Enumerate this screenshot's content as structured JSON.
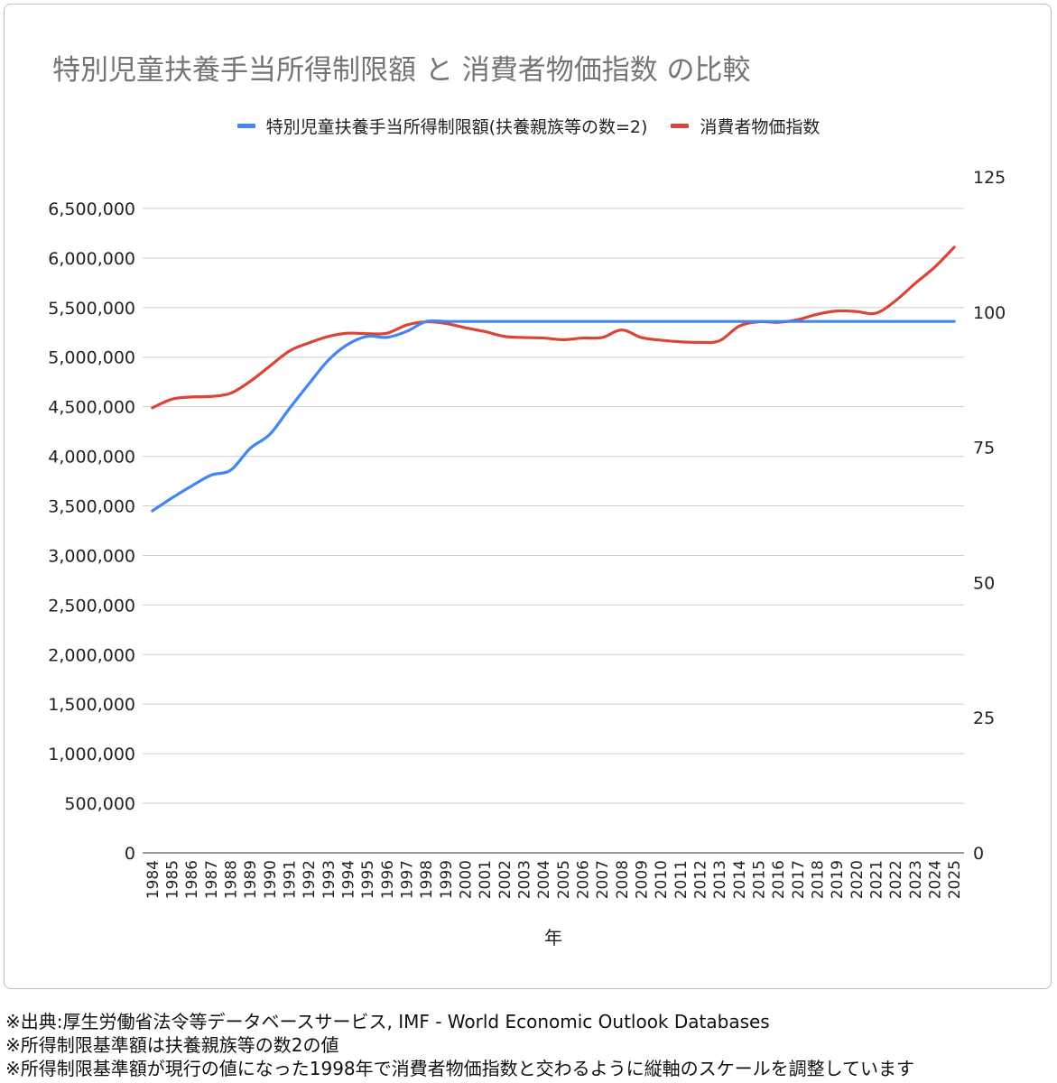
{
  "chart_data": {
    "type": "line",
    "title": "特別児童扶養手当所得制限額 と 消費者物価指数 の比較",
    "xlabel": "年",
    "categories": [
      "1984",
      "1985",
      "1986",
      "1987",
      "1988",
      "1989",
      "1990",
      "1991",
      "1992",
      "1993",
      "1994",
      "1995",
      "1996",
      "1997",
      "1998",
      "1999",
      "2000",
      "2001",
      "2002",
      "2003",
      "2004",
      "2005",
      "2006",
      "2007",
      "2008",
      "2009",
      "2010",
      "2011",
      "2012",
      "2013",
      "2014",
      "2015",
      "2016",
      "2017",
      "2018",
      "2019",
      "2020",
      "2021",
      "2022",
      "2023",
      "2024",
      "2025"
    ],
    "left_axis": {
      "min": 0,
      "max": 6818182,
      "ticks": [
        0,
        500000,
        1000000,
        1500000,
        2000000,
        2500000,
        3000000,
        3500000,
        4000000,
        4500000,
        5000000,
        5500000,
        6000000,
        6500000
      ],
      "tick_labels": [
        "0",
        "500,000",
        "1,000,000",
        "1,500,000",
        "2,000,000",
        "2,500,000",
        "3,000,000",
        "3,500,000",
        "4,000,000",
        "4,500,000",
        "5,000,000",
        "5,500,000",
        "6,000,000",
        "6,500,000"
      ]
    },
    "right_axis": {
      "min": 0,
      "max": 125,
      "ticks": [
        0,
        25,
        50,
        75,
        100,
        125
      ],
      "tick_labels": [
        "0",
        "25",
        "50",
        "75",
        "100",
        "125"
      ]
    },
    "grid": true,
    "legend_position": "top",
    "series": [
      {
        "name": "特別児童扶養手当所得制限額(扶養親族等の数=2)",
        "color": "#4285f4",
        "axis": "left",
        "values": [
          3450000,
          3580000,
          3700000,
          3810000,
          3860000,
          4080000,
          4220000,
          4480000,
          4730000,
          4970000,
          5130000,
          5210000,
          5200000,
          5260000,
          5360000,
          5360000,
          5360000,
          5360000,
          5360000,
          5360000,
          5360000,
          5360000,
          5360000,
          5360000,
          5360000,
          5360000,
          5360000,
          5360000,
          5360000,
          5360000,
          5360000,
          5360000,
          5360000,
          5360000,
          5360000,
          5360000,
          5360000,
          5360000,
          5360000,
          5360000,
          5360000,
          5360000
        ]
      },
      {
        "name": "消費者物価指数",
        "color": "#db4437",
        "axis": "right",
        "values": [
          82.3,
          83.9,
          84.3,
          84.4,
          85.0,
          87.2,
          90.0,
          92.8,
          94.3,
          95.5,
          96.1,
          96.0,
          96.1,
          97.6,
          98.2,
          97.9,
          97.1,
          96.4,
          95.5,
          95.3,
          95.2,
          94.9,
          95.2,
          95.3,
          96.7,
          95.3,
          94.8,
          94.5,
          94.4,
          94.7,
          97.4,
          98.2,
          98.1,
          98.6,
          99.6,
          100.2,
          100.1,
          99.8,
          102.1,
          105.3,
          108.3,
          112.0
        ]
      }
    ]
  },
  "footnotes": [
    "※出典:厚生労働省法令等データベースサービス, IMF - World Economic Outlook Databases",
    "※所得制限基準額は扶養親族等の数2の値",
    "※所得制限基準額が現行の値になった1998年で消費者物価指数と交わるように縦軸のスケールを調整しています"
  ]
}
